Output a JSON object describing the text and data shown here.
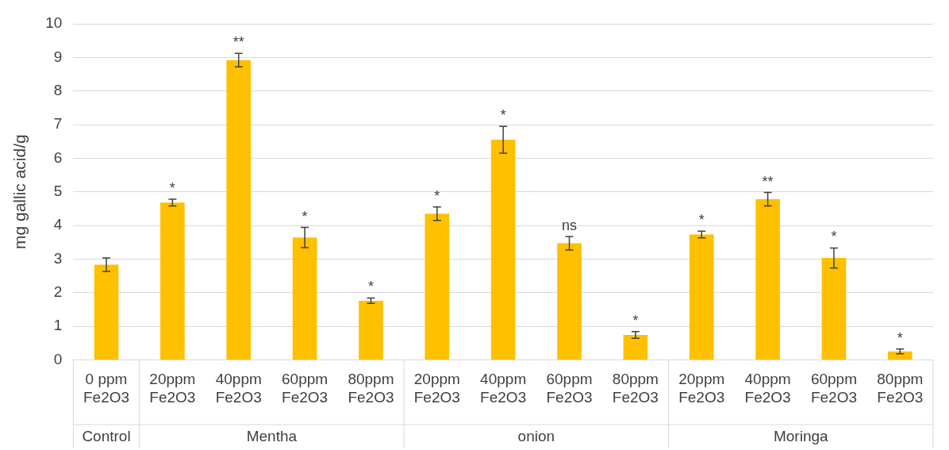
{
  "chart_data": {
    "type": "bar",
    "ylabel": "mg gallic acid/g",
    "categories": [
      "0 ppm Fe2O3",
      "20ppm Fe2O3",
      "40ppm Fe2O3",
      "60ppm Fe2O3",
      "80ppm Fe2O3",
      "20ppm Fe2O3",
      "40ppm Fe2O3",
      "60ppm Fe2O3",
      "80ppm Fe2O3",
      "20ppm Fe2O3",
      "40ppm Fe2O3",
      "60ppm Fe2O3",
      "80ppm Fe2O3"
    ],
    "values": [
      2.83,
      4.68,
      8.92,
      3.64,
      1.76,
      4.35,
      6.55,
      3.47,
      0.74,
      3.73,
      4.78,
      3.03,
      0.25
    ],
    "errors": [
      0.2,
      0.1,
      0.2,
      0.3,
      0.08,
      0.2,
      0.4,
      0.2,
      0.1,
      0.1,
      0.2,
      0.3,
      0.07
    ],
    "value_labels": [
      null,
      "*",
      "**",
      "*",
      "*",
      "*",
      "*",
      "ns",
      "*",
      "*",
      "**",
      "*",
      "*"
    ],
    "color": "#ffc000",
    "annotations": [
      "Control",
      "Mentha",
      "onion",
      "Moringa"
    ],
    "ylim": [
      0,
      10
    ],
    "yticks": [
      0,
      1,
      2,
      3,
      4,
      5,
      6,
      7,
      8,
      9,
      10
    ],
    "grid": "y",
    "legend": false
  }
}
